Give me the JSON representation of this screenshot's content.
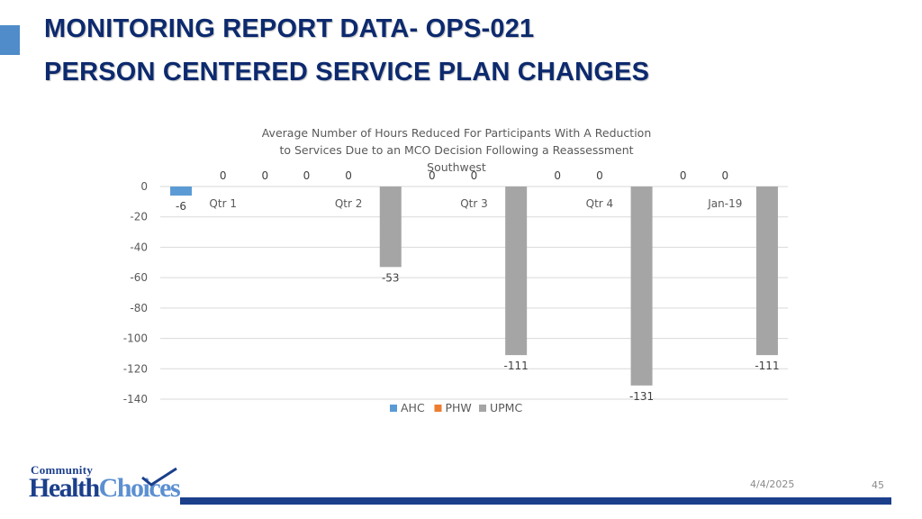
{
  "slide": {
    "title_line1": "MONITORING REPORT DATA- OPS-021",
    "title_line2": "PERSON CENTERED SERVICE PLAN CHANGES",
    "accent_color": "#4f8cc9",
    "title_color": "#0d2a6e",
    "footer_bar_color": "#1b3f8b"
  },
  "chart_data": {
    "type": "bar",
    "title_lines": [
      "Average Number of Hours Reduced For Participants With A Reduction",
      "to Services Due to an MCO Decision Following a Reassessment",
      "Southwest"
    ],
    "categories": [
      "Qtr 1",
      "Qtr 2",
      "Qtr 3",
      "Qtr 4",
      "Jan-19"
    ],
    "series": [
      {
        "name": "AHC",
        "color": "#5b9bd5",
        "values": [
          -6,
          0,
          0,
          0,
          0
        ]
      },
      {
        "name": "PHW",
        "color": "#ed7d31",
        "values": [
          0,
          0,
          0,
          0,
          0
        ]
      },
      {
        "name": "UPMC",
        "color": "#a5a5a5",
        "values": [
          0,
          -53,
          -111,
          -131,
          -111
        ]
      }
    ],
    "ylim": [
      -140,
      0
    ],
    "yticks": [
      0,
      -20,
      -40,
      -60,
      -80,
      -100,
      -120,
      -140
    ],
    "grid": true,
    "legend_position": "bottom"
  },
  "logo": {
    "text_top": "Community",
    "text_health": "Health",
    "text_choices": "Choices"
  },
  "footer": {
    "date": "4/4/2025",
    "page_number": "45"
  }
}
